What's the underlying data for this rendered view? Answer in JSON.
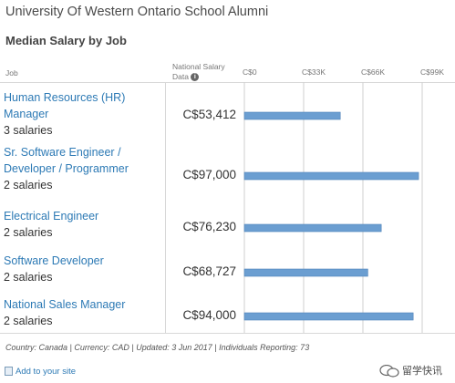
{
  "title": "University Of Western Ontario School Alumni",
  "subtitle": "Median Salary by Job",
  "header": {
    "job_col": "Job",
    "national_line1": "National Salary",
    "national_line2": "Data"
  },
  "chart_data": {
    "type": "bar",
    "orientation": "horizontal",
    "categories": [
      "Human Resources (HR) Manager",
      "Sr. Software Engineer / Developer / Programmer",
      "Electrical Engineer",
      "Software Developer",
      "National Sales Manager"
    ],
    "values": [
      53412,
      97000,
      76230,
      68727,
      94000
    ],
    "value_labels": [
      "C$53,412",
      "C$97,000",
      "C$76,230",
      "C$68,727",
      "C$94,000"
    ],
    "x_ticks": [
      {
        "value": 0,
        "label": "C$0"
      },
      {
        "value": 33000,
        "label": "C$33K"
      },
      {
        "value": 66000,
        "label": "C$66K"
      },
      {
        "value": 99000,
        "label": "C$99K"
      }
    ],
    "xlim": [
      0,
      99000
    ],
    "grid": true,
    "bar_color": "#6b9ed1"
  },
  "jobs": [
    {
      "name_lines": [
        "Human Resources (HR)",
        "Manager"
      ],
      "count": "3 salaries"
    },
    {
      "name_lines": [
        "Sr. Software Engineer /",
        "Developer / Programmer"
      ],
      "count": "2 salaries"
    },
    {
      "name_lines": [
        "Electrical Engineer"
      ],
      "count": "2 salaries"
    },
    {
      "name_lines": [
        "Software Developer"
      ],
      "count": "2 salaries"
    },
    {
      "name_lines": [
        "National Sales Manager"
      ],
      "count": "2 salaries"
    }
  ],
  "footer": "Country: Canada | Currency: CAD | Updated: 3 Jun 2017 | Individuals Reporting: 73",
  "add_link": "Add to your site",
  "watermark": "留学快讯",
  "colors": {
    "link": "#2d7ab5",
    "bar": "#6b9ed1",
    "grid": "#cfcfcf"
  }
}
